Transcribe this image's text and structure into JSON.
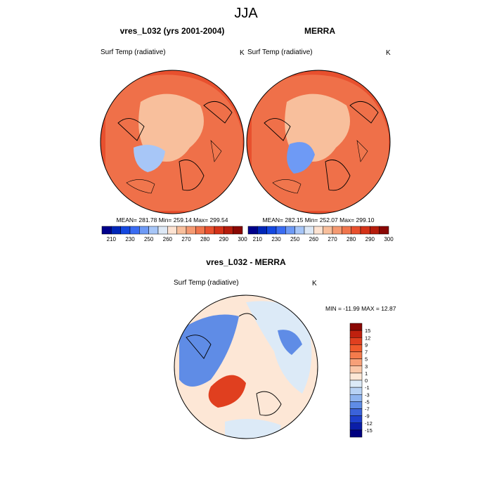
{
  "title": "JJA",
  "panels": [
    {
      "title": "vres_L032 (yrs 2001-2004)",
      "left_label": "Surf Temp (radiative)",
      "right_label": "K",
      "stats": "MEAN= 281.78  Min= 259.14  Max= 299.54"
    },
    {
      "title": "MERRA",
      "left_label": "Surf Temp (radiative)",
      "right_label": "K",
      "stats": "MEAN= 282.15  Min= 252.07  Max= 299.10"
    }
  ],
  "diff_panel": {
    "title": "vres_L032 - MERRA",
    "left_label": "Surf Temp (radiative)",
    "right_label": "K",
    "stats": "MIN = -11.99 MAX =  12.87"
  },
  "abs_colorbar": {
    "colors": [
      "#00008b",
      "#0026b8",
      "#1448e0",
      "#3a6cf2",
      "#6e9af5",
      "#a7c6f7",
      "#dde8f5",
      "#fde3d2",
      "#f8bf9c",
      "#f59a72",
      "#f0764d",
      "#e8502e",
      "#d43218",
      "#b51c0c",
      "#8a0804"
    ],
    "labels": [
      "210",
      "230",
      "250",
      "260",
      "270",
      "280",
      "290",
      "300"
    ]
  },
  "diff_colorbar": {
    "colors": [
      "#8a0804",
      "#c0200e",
      "#e03f1f",
      "#f05a2c",
      "#f47b4c",
      "#f7a078",
      "#fac7a8",
      "#fde7d6",
      "#dceaf7",
      "#b8d2f4",
      "#8fb4ef",
      "#5f8ce6",
      "#3b62da",
      "#1e3fcc",
      "#0b1ea8",
      "#000080"
    ],
    "labels": [
      "15",
      "12",
      "9",
      "7",
      "5",
      "3",
      "1",
      "0",
      "-1",
      "-3",
      "-5",
      "-7",
      "-9",
      "-12",
      "-15"
    ]
  },
  "colors": {
    "warm_fill": "#e8502e",
    "mid_fill": "#f0764d",
    "light_fill": "#f8bf9c",
    "cold_fill": "#a7c6f7",
    "diff_bg": "#fde7d6",
    "diff_blue": "#5f8ce6",
    "diff_lightblue": "#dceaf7",
    "diff_red": "#e03f1f"
  }
}
